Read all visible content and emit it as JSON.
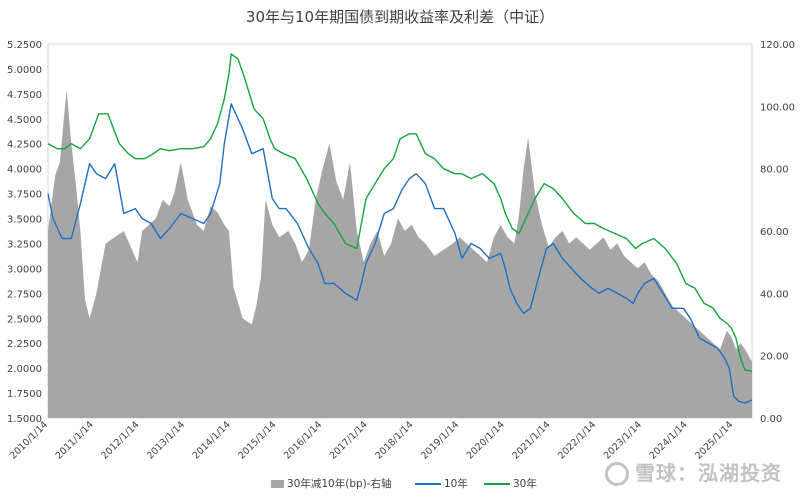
{
  "chart_data": {
    "type": "line",
    "title": "30年与10年期国债到期收益率及利差（中证）",
    "left_axis": {
      "min": 1.5,
      "max": 5.25,
      "ticks": [
        "5.2500",
        "5.0000",
        "4.7500",
        "4.5000",
        "4.2500",
        "4.0000",
        "3.7500",
        "3.5000",
        "3.2500",
        "3.0000",
        "2.7500",
        "2.5000",
        "2.2500",
        "2.0000",
        "1.7500",
        "1.5000"
      ]
    },
    "right_axis": {
      "min": 0,
      "max": 120,
      "ticks": [
        "120.00",
        "100.00",
        "80.00",
        "60.00",
        "40.00",
        "20.00",
        "0.00"
      ]
    },
    "x_range": [
      2010.04,
      2025.45
    ],
    "x_ticks": [
      "2010/1/14",
      "2011/1/14",
      "2012/1/14",
      "2013/1/14",
      "2014/1/14",
      "2015/1/14",
      "2016/1/14",
      "2017/1/14",
      "2018/1/14",
      "2019/1/14",
      "2020/1/14",
      "2021/1/14",
      "2022/1/14",
      "2023/1/14",
      "2024/1/14",
      "2025/1/14"
    ],
    "legend": [
      "30年减10年(bp)-右轴",
      "10年",
      "30年"
    ],
    "series": [
      {
        "name": "10年",
        "axis": "left",
        "color": "#1f6fc5",
        "x": [
          2010.04,
          2010.15,
          2010.35,
          2010.55,
          2010.75,
          2010.95,
          2011.1,
          2011.3,
          2011.5,
          2011.7,
          2011.95,
          2012.1,
          2012.3,
          2012.5,
          2012.7,
          2012.95,
          2013.2,
          2013.45,
          2013.6,
          2013.8,
          2013.9,
          2014.05,
          2014.3,
          2014.5,
          2014.75,
          2014.95,
          2015.1,
          2015.25,
          2015.5,
          2015.75,
          2015.95,
          2016.1,
          2016.3,
          2016.55,
          2016.8,
          2016.9,
          2017.0,
          2017.2,
          2017.4,
          2017.6,
          2017.8,
          2017.95,
          2018.1,
          2018.3,
          2018.5,
          2018.7,
          2018.95,
          2019.1,
          2019.3,
          2019.5,
          2019.7,
          2019.95,
          2020.05,
          2020.15,
          2020.3,
          2020.45,
          2020.6,
          2020.8,
          2020.95,
          2021.1,
          2021.3,
          2021.5,
          2021.7,
          2021.95,
          2022.1,
          2022.3,
          2022.5,
          2022.7,
          2022.85,
          2022.95,
          2023.1,
          2023.3,
          2023.5,
          2023.7,
          2023.95,
          2024.1,
          2024.3,
          2024.5,
          2024.7,
          2024.85,
          2024.95,
          2025.05,
          2025.15,
          2025.3,
          2025.45
        ],
        "values": [
          3.75,
          3.5,
          3.3,
          3.3,
          3.65,
          4.05,
          3.95,
          3.9,
          4.05,
          3.55,
          3.6,
          3.5,
          3.45,
          3.3,
          3.4,
          3.55,
          3.5,
          3.45,
          3.55,
          3.85,
          4.25,
          4.65,
          4.4,
          4.15,
          4.2,
          3.7,
          3.6,
          3.6,
          3.45,
          3.2,
          3.05,
          2.85,
          2.85,
          2.75,
          2.68,
          2.85,
          3.05,
          3.25,
          3.55,
          3.6,
          3.8,
          3.9,
          3.95,
          3.85,
          3.6,
          3.6,
          3.35,
          3.1,
          3.25,
          3.2,
          3.1,
          3.15,
          3.0,
          2.8,
          2.65,
          2.55,
          2.6,
          2.95,
          3.2,
          3.25,
          3.1,
          3.0,
          2.9,
          2.8,
          2.75,
          2.8,
          2.75,
          2.7,
          2.65,
          2.75,
          2.85,
          2.9,
          2.75,
          2.6,
          2.6,
          2.5,
          2.3,
          2.25,
          2.2,
          2.1,
          2.0,
          1.72,
          1.67,
          1.65,
          1.68
        ]
      },
      {
        "name": "30年",
        "axis": "left",
        "color": "#14a63a",
        "x": [
          2010.04,
          2010.25,
          2010.4,
          2010.55,
          2010.75,
          2010.95,
          2011.15,
          2011.35,
          2011.6,
          2011.8,
          2011.95,
          2012.15,
          2012.35,
          2012.5,
          2012.7,
          2012.95,
          2013.2,
          2013.45,
          2013.6,
          2013.75,
          2013.9,
          2014.0,
          2014.05,
          2014.2,
          2014.35,
          2014.55,
          2014.75,
          2014.9,
          2015.0,
          2015.2,
          2015.45,
          2015.7,
          2015.95,
          2016.1,
          2016.3,
          2016.55,
          2016.8,
          2016.9,
          2017.0,
          2017.2,
          2017.4,
          2017.6,
          2017.75,
          2017.95,
          2018.1,
          2018.3,
          2018.5,
          2018.7,
          2018.95,
          2019.1,
          2019.3,
          2019.55,
          2019.8,
          2019.95,
          2020.05,
          2020.2,
          2020.35,
          2020.5,
          2020.7,
          2020.9,
          2021.1,
          2021.3,
          2021.55,
          2021.8,
          2022.0,
          2022.2,
          2022.45,
          2022.7,
          2022.9,
          2023.05,
          2023.3,
          2023.55,
          2023.8,
          2024.0,
          2024.2,
          2024.4,
          2024.6,
          2024.75,
          2024.9,
          2025.0,
          2025.1,
          2025.2,
          2025.3,
          2025.45
        ],
        "values": [
          4.25,
          4.2,
          4.2,
          4.25,
          4.2,
          4.3,
          4.55,
          4.55,
          4.25,
          4.15,
          4.1,
          4.1,
          4.15,
          4.2,
          4.18,
          4.2,
          4.2,
          4.22,
          4.3,
          4.45,
          4.7,
          4.95,
          5.15,
          5.1,
          4.9,
          4.6,
          4.5,
          4.3,
          4.2,
          4.15,
          4.1,
          3.9,
          3.65,
          3.55,
          3.45,
          3.25,
          3.2,
          3.45,
          3.7,
          3.85,
          4.0,
          4.1,
          4.3,
          4.35,
          4.35,
          4.15,
          4.1,
          4.0,
          3.95,
          3.95,
          3.9,
          3.95,
          3.85,
          3.7,
          3.55,
          3.4,
          3.35,
          3.5,
          3.7,
          3.85,
          3.8,
          3.7,
          3.55,
          3.45,
          3.45,
          3.4,
          3.35,
          3.3,
          3.2,
          3.25,
          3.3,
          3.2,
          3.05,
          2.85,
          2.8,
          2.65,
          2.6,
          2.5,
          2.45,
          2.4,
          2.3,
          2.1,
          1.98,
          1.97
        ]
      },
      {
        "name": "30年减10年(bp)-右轴",
        "axis": "right",
        "color": "#a6a6a6",
        "type": "area",
        "x": [
          2010.04,
          2010.2,
          2010.3,
          2010.4,
          2010.45,
          2010.55,
          2010.65,
          2010.75,
          2010.85,
          2010.95,
          2011.1,
          2011.3,
          2011.5,
          2011.7,
          2011.85,
          2012.0,
          2012.1,
          2012.25,
          2012.4,
          2012.55,
          2012.7,
          2012.8,
          2012.95,
          2013.1,
          2013.3,
          2013.45,
          2013.6,
          2013.75,
          2013.9,
          2014.0,
          2014.1,
          2014.3,
          2014.5,
          2014.6,
          2014.7,
          2014.8,
          2014.95,
          2015.1,
          2015.3,
          2015.45,
          2015.6,
          2015.75,
          2015.9,
          2016.05,
          2016.2,
          2016.35,
          2016.5,
          2016.65,
          2016.8,
          2016.95,
          2017.1,
          2017.25,
          2017.4,
          2017.55,
          2017.7,
          2017.85,
          2018.0,
          2018.15,
          2018.3,
          2018.5,
          2018.7,
          2018.9,
          2019.05,
          2019.2,
          2019.35,
          2019.5,
          2019.65,
          2019.8,
          2019.95,
          2020.1,
          2020.25,
          2020.35,
          2020.45,
          2020.55,
          2020.7,
          2020.85,
          2021.0,
          2021.15,
          2021.3,
          2021.45,
          2021.6,
          2021.75,
          2021.9,
          2022.05,
          2022.2,
          2022.35,
          2022.5,
          2022.65,
          2022.8,
          2022.95,
          2023.1,
          2023.25,
          2023.4,
          2023.55,
          2023.7,
          2023.85,
          2024.0,
          2024.15,
          2024.3,
          2024.45,
          2024.6,
          2024.75,
          2024.9,
          2025.0,
          2025.1,
          2025.2,
          2025.3,
          2025.45
        ],
        "values": [
          60,
          78,
          82,
          98,
          105,
          88,
          75,
          60,
          38,
          32,
          40,
          56,
          58,
          60,
          55,
          50,
          60,
          62,
          64,
          70,
          68,
          72,
          82,
          70,
          62,
          60,
          68,
          66,
          62,
          60,
          42,
          32,
          30,
          36,
          45,
          70,
          62,
          58,
          60,
          56,
          50,
          54,
          70,
          80,
          88,
          76,
          70,
          82,
          60,
          50,
          56,
          60,
          52,
          56,
          64,
          60,
          62,
          58,
          56,
          52,
          54,
          56,
          58,
          56,
          54,
          52,
          50,
          58,
          62,
          58,
          56,
          65,
          80,
          90,
          72,
          62,
          55,
          58,
          60,
          56,
          58,
          56,
          54,
          56,
          58,
          54,
          56,
          52,
          50,
          48,
          50,
          46,
          44,
          40,
          36,
          34,
          32,
          30,
          28,
          26,
          24,
          22,
          28,
          26,
          22,
          24,
          22,
          18
        ]
      }
    ]
  },
  "watermark": "雪球：泓湖投资"
}
